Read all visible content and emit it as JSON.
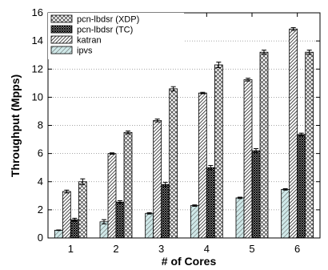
{
  "chart_data": {
    "type": "bar",
    "title": "",
    "xlabel": "# of Cores",
    "ylabel": "Throughput (Mpps)",
    "categories": [
      "1",
      "2",
      "3",
      "4",
      "5",
      "6"
    ],
    "ylim": [
      0,
      16
    ],
    "yticks": [
      "0",
      "2",
      "4",
      "6",
      "8",
      "10",
      "12",
      "14",
      "16"
    ],
    "grid": "horizontal-dotted",
    "legend_position": "top-left",
    "bar_order": [
      "ipvs",
      "katran",
      "pcn-lbdsr (TC)",
      "pcn-lbdsr (XDP)"
    ],
    "series": [
      {
        "name": "pcn-lbdsr (XDP)",
        "pattern": "crosshatch-light",
        "values": [
          4.0,
          7.5,
          10.6,
          12.3,
          13.2,
          13.2
        ],
        "errors": [
          0.2,
          0.1,
          0.15,
          0.2,
          0.15,
          0.15
        ]
      },
      {
        "name": "pcn-lbdsr (TC)",
        "pattern": "crosshatch-dense",
        "values": [
          1.3,
          2.55,
          3.8,
          5.0,
          6.2,
          7.35
        ],
        "errors": [
          0.1,
          0.1,
          0.15,
          0.15,
          0.15,
          0.1
        ]
      },
      {
        "name": "katran",
        "pattern": "diagonal-dense",
        "values": [
          3.3,
          6.0,
          8.35,
          10.3,
          11.25,
          14.85
        ],
        "errors": [
          0.1,
          0.05,
          0.1,
          0.05,
          0.1,
          0.1
        ]
      },
      {
        "name": "ipvs",
        "pattern": "diagonal-light",
        "values": [
          0.55,
          1.15,
          1.75,
          2.3,
          2.85,
          3.45
        ],
        "errors": [
          0.02,
          0.15,
          0.05,
          0.05,
          0.05,
          0.05
        ]
      }
    ],
    "colors": {
      "bar_stroke": "#000000",
      "axis": "#000000",
      "grid": "#888888"
    }
  }
}
